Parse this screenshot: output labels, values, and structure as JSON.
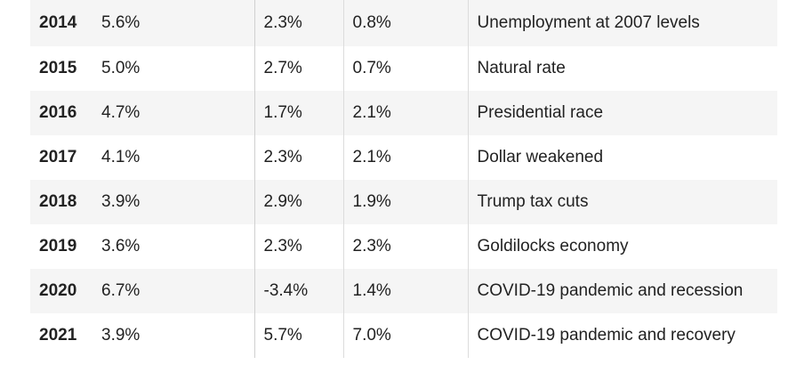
{
  "rows": [
    {
      "year": "2014",
      "unemployment": "5.6%",
      "gdp": "2.3%",
      "inflation": "0.8%",
      "event": "Unemployment at 2007 levels"
    },
    {
      "year": "2015",
      "unemployment": "5.0%",
      "gdp": "2.7%",
      "inflation": "0.7%",
      "event": "Natural rate"
    },
    {
      "year": "2016",
      "unemployment": "4.7%",
      "gdp": "1.7%",
      "inflation": "2.1%",
      "event": "Presidential race"
    },
    {
      "year": "2017",
      "unemployment": "4.1%",
      "gdp": "2.3%",
      "inflation": "2.1%",
      "event": "Dollar weakened"
    },
    {
      "year": "2018",
      "unemployment": "3.9%",
      "gdp": "2.9%",
      "inflation": "1.9%",
      "event": "Trump tax cuts"
    },
    {
      "year": "2019",
      "unemployment": "3.6%",
      "gdp": "2.3%",
      "inflation": "2.3%",
      "event": "Goldilocks economy"
    },
    {
      "year": "2020",
      "unemployment": "6.7%",
      "gdp": "-3.4%",
      "inflation": "1.4%",
      "event": "COVID-19 pandemic and recession"
    },
    {
      "year": "2021",
      "unemployment": "3.9%",
      "gdp": "5.7%",
      "inflation": "7.0%",
      "event": "COVID-19 pandemic and recovery"
    }
  ],
  "colors": {
    "row_shade": "#f5f5f5",
    "text": "#222222",
    "divider": "#dcdcdc"
  }
}
